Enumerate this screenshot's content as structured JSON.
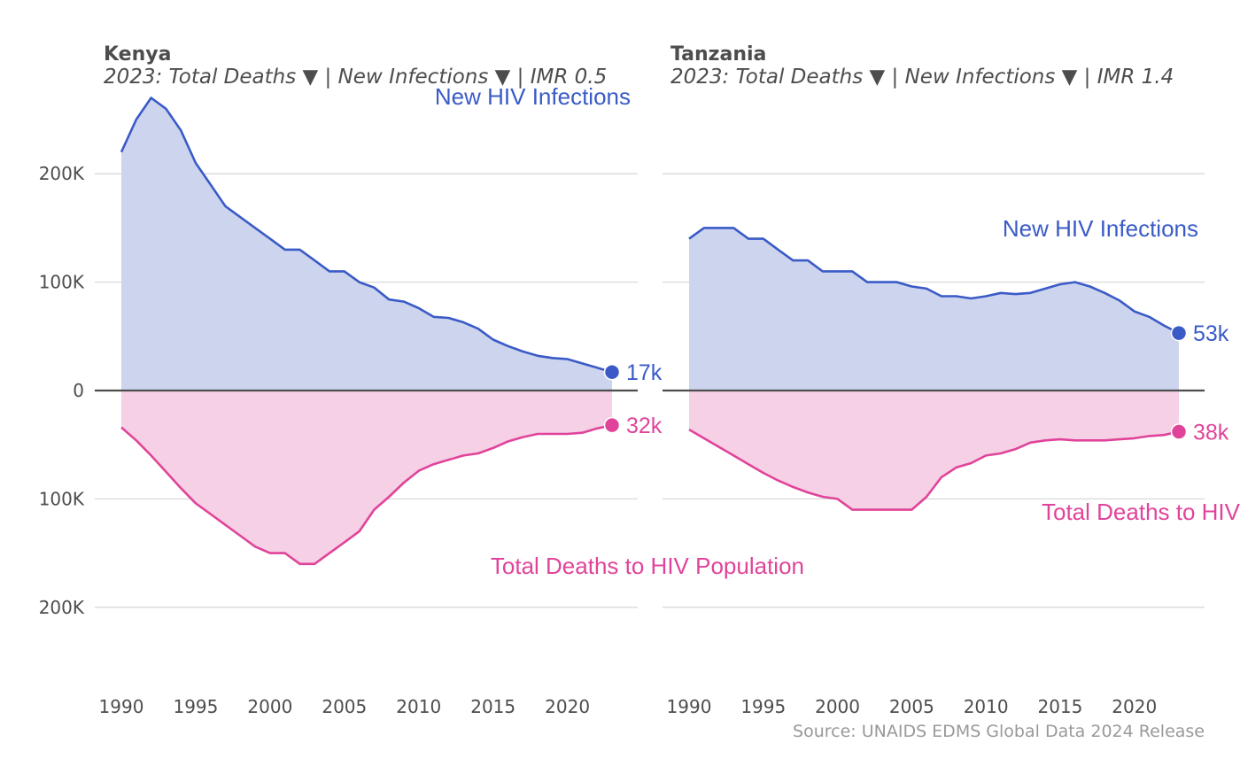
{
  "colors": {
    "infections": "#3a5bc7",
    "infections_fill": "#cdd4ee",
    "deaths": "#e0449a",
    "deaths_fill": "#f6d0e5",
    "grid": "#d9d9d9",
    "zero": "#4d4d4d",
    "text": "#4d4d4d",
    "source": "#999999"
  },
  "source": "Source: UNAIDS EDMS Global Data 2024 Release",
  "chart_data": [
    {
      "type": "area",
      "title": "Kenya",
      "subtitle": "2023: Total Deaths ▼ | New Infections ▼  | IMR 0.5",
      "x_ticks": [
        1990,
        1995,
        2000,
        2005,
        2010,
        2015,
        2020
      ],
      "y_ticks": [
        {
          "value": 200000,
          "label": "200K"
        },
        {
          "value": 100000,
          "label": "100K"
        },
        {
          "value": 0,
          "label": "0"
        },
        {
          "value": -100000,
          "label": "100K"
        },
        {
          "value": -200000,
          "label": "200K"
        }
      ],
      "xlim": [
        1990,
        2023
      ],
      "ylim": [
        -200000,
        270000
      ],
      "grid": true,
      "series": [
        {
          "name": "New HIV Infections",
          "end_label": "17k",
          "x": [
            1990,
            1991,
            1992,
            1993,
            1994,
            1995,
            1996,
            1997,
            1998,
            1999,
            2000,
            2001,
            2002,
            2003,
            2004,
            2005,
            2006,
            2007,
            2008,
            2009,
            2010,
            2011,
            2012,
            2013,
            2014,
            2015,
            2016,
            2017,
            2018,
            2019,
            2020,
            2021,
            2022,
            2023
          ],
          "values": [
            220000,
            250000,
            270000,
            260000,
            240000,
            210000,
            190000,
            170000,
            160000,
            150000,
            140000,
            130000,
            130000,
            120000,
            110000,
            110000,
            100000,
            95000,
            84000,
            82000,
            76000,
            68000,
            67000,
            63000,
            57000,
            47000,
            41000,
            36000,
            32000,
            30000,
            29000,
            25000,
            21000,
            17000
          ]
        },
        {
          "name": "Total Deaths to HIV Population",
          "end_label": "32k",
          "x": [
            1990,
            1991,
            1992,
            1993,
            1994,
            1995,
            1996,
            1997,
            1998,
            1999,
            2000,
            2001,
            2002,
            2003,
            2004,
            2005,
            2006,
            2007,
            2008,
            2009,
            2010,
            2011,
            2012,
            2013,
            2014,
            2015,
            2016,
            2017,
            2018,
            2019,
            2020,
            2021,
            2022,
            2023
          ],
          "values": [
            -34000,
            -46000,
            -60000,
            -75000,
            -90000,
            -104000,
            -114000,
            -124000,
            -134000,
            -144000,
            -150000,
            -150000,
            -160000,
            -160000,
            -150000,
            -140000,
            -130000,
            -110000,
            -98000,
            -85000,
            -74000,
            -68000,
            -64000,
            -60000,
            -58000,
            -53000,
            -47000,
            -43000,
            -40000,
            -40000,
            -40000,
            -39000,
            -35000,
            -32000
          ]
        }
      ]
    },
    {
      "type": "area",
      "title": "Tanzania",
      "subtitle": "2023: Total Deaths ▼ | New Infections ▼  | IMR 1.4",
      "x_ticks": [
        1990,
        1995,
        2000,
        2005,
        2010,
        2015,
        2020
      ],
      "y_ticks": [
        {
          "value": 200000,
          "label": ""
        },
        {
          "value": 100000,
          "label": ""
        },
        {
          "value": 0,
          "label": ""
        },
        {
          "value": -100000,
          "label": ""
        },
        {
          "value": -200000,
          "label": ""
        }
      ],
      "xlim": [
        1990,
        2023
      ],
      "ylim": [
        -200000,
        270000
      ],
      "grid": true,
      "series": [
        {
          "name": "New HIV Infections",
          "end_label": "53k",
          "x": [
            1990,
            1991,
            1992,
            1993,
            1994,
            1995,
            1996,
            1997,
            1998,
            1999,
            2000,
            2001,
            2002,
            2003,
            2004,
            2005,
            2006,
            2007,
            2008,
            2009,
            2010,
            2011,
            2012,
            2013,
            2014,
            2015,
            2016,
            2017,
            2018,
            2019,
            2020,
            2021,
            2022,
            2023
          ],
          "values": [
            140000,
            150000,
            150000,
            150000,
            140000,
            140000,
            130000,
            120000,
            120000,
            110000,
            110000,
            110000,
            100000,
            100000,
            100000,
            96000,
            94000,
            87000,
            87000,
            85000,
            87000,
            90000,
            89000,
            90000,
            94000,
            98000,
            100000,
            96000,
            90000,
            83000,
            73000,
            68000,
            60000,
            53000
          ]
        },
        {
          "name": "Total Deaths to HIV",
          "end_label": "38k",
          "x": [
            1990,
            1991,
            1992,
            1993,
            1994,
            1995,
            1996,
            1997,
            1998,
            1999,
            2000,
            2001,
            2002,
            2003,
            2004,
            2005,
            2006,
            2007,
            2008,
            2009,
            2010,
            2011,
            2012,
            2013,
            2014,
            2015,
            2016,
            2017,
            2018,
            2019,
            2020,
            2021,
            2022,
            2023
          ],
          "values": [
            -36000,
            -44000,
            -52000,
            -60000,
            -68000,
            -76000,
            -83000,
            -89000,
            -94000,
            -98000,
            -100000,
            -110000,
            -110000,
            -110000,
            -110000,
            -110000,
            -98000,
            -80000,
            -71000,
            -67000,
            -60000,
            -58000,
            -54000,
            -48000,
            -46000,
            -45000,
            -46000,
            -46000,
            -46000,
            -45000,
            -44000,
            -42000,
            -41000,
            -38000
          ]
        }
      ]
    }
  ]
}
